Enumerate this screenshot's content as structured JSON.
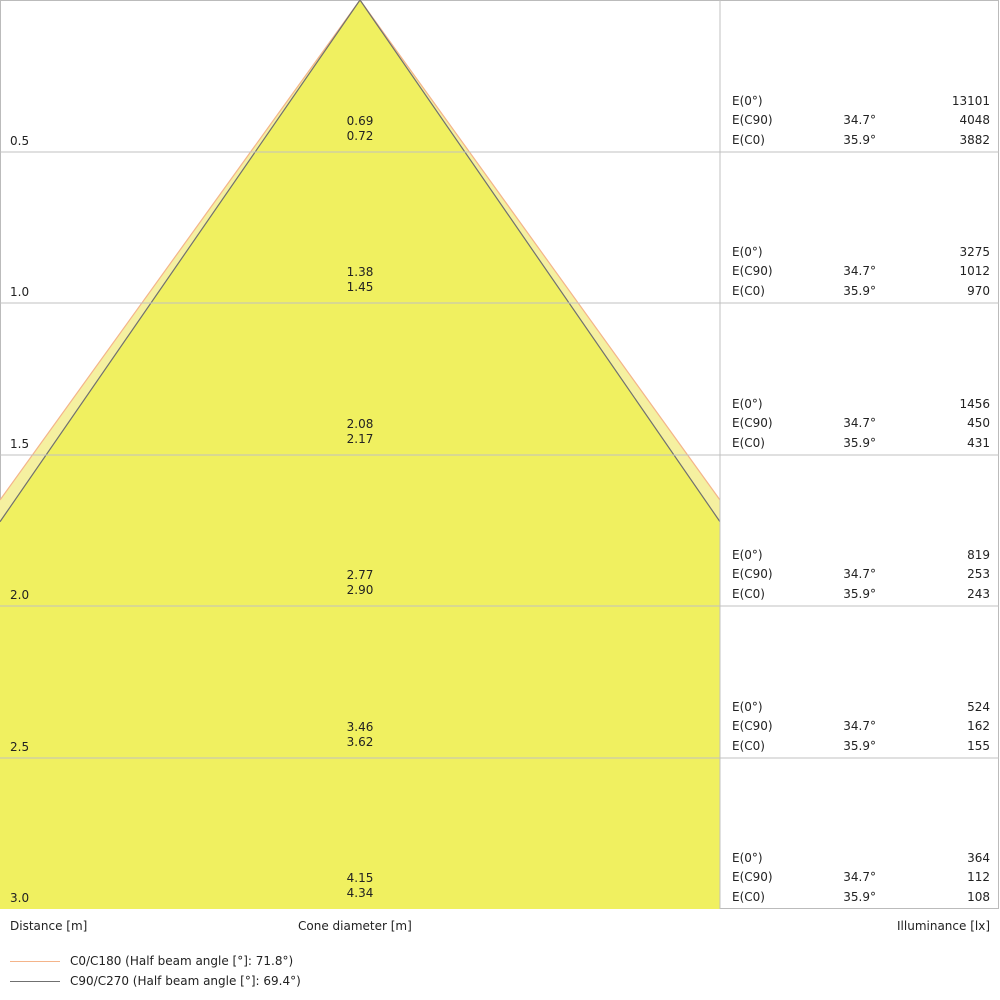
{
  "colors": {
    "cone_fill": "#f0f060",
    "outer_fill": "#f5f0a0",
    "c0_line": "#f4b48a",
    "c90_line": "#707070",
    "grid": "#c0c0c0"
  },
  "rows": [
    {
      "distance": "0.5",
      "c90_diameter": "0.69",
      "c0_diameter": "0.72",
      "e0": "13101",
      "c90_angle": "34.7°",
      "e_c90": "4048",
      "c0_angle": "35.9°",
      "e_c0": "3882"
    },
    {
      "distance": "1.0",
      "c90_diameter": "1.38",
      "c0_diameter": "1.45",
      "e0": "3275",
      "c90_angle": "34.7°",
      "e_c90": "1012",
      "c0_angle": "35.9°",
      "e_c0": "970"
    },
    {
      "distance": "1.5",
      "c90_diameter": "2.08",
      "c0_diameter": "2.17",
      "e0": "1456",
      "c90_angle": "34.7°",
      "e_c90": "450",
      "c0_angle": "35.9°",
      "e_c0": "431"
    },
    {
      "distance": "2.0",
      "c90_diameter": "2.77",
      "c0_diameter": "2.90",
      "e0": "819",
      "c90_angle": "34.7°",
      "e_c90": "253",
      "c0_angle": "35.9°",
      "e_c0": "243"
    },
    {
      "distance": "2.5",
      "c90_diameter": "3.46",
      "c0_diameter": "3.62",
      "e0": "524",
      "c90_angle": "34.7°",
      "e_c90": "162",
      "c0_angle": "35.9°",
      "e_c0": "155"
    },
    {
      "distance": "3.0",
      "c90_diameter": "4.15",
      "c0_diameter": "4.34",
      "e0": "364",
      "c90_angle": "34.7°",
      "e_c90": "112",
      "c0_angle": "35.9°",
      "e_c0": "108"
    }
  ],
  "labels": {
    "e0": "E(0°)",
    "e_c90": "E(C90)",
    "e_c0": "E(C0)",
    "distance": "Distance [m]",
    "cone": "Cone diameter [m]",
    "illuminance": "Illuminance [lx]"
  },
  "legend": [
    {
      "label": "C0/C180 (Half beam angle [°]: 71.8°)",
      "color": "#f4b48a"
    },
    {
      "label": "C90/C270 (Half beam angle [°]: 69.4°)",
      "color": "#707070"
    }
  ]
}
